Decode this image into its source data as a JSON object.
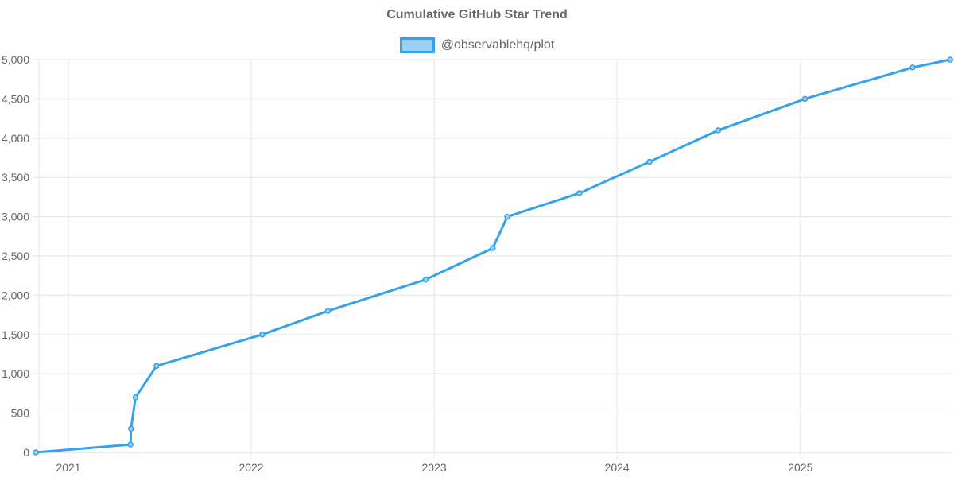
{
  "chart_data": {
    "type": "line",
    "title": "Cumulative GitHub Star Trend",
    "xlabel": "",
    "ylabel": "",
    "legend": {
      "position": "top",
      "entries": [
        "@observablehq/plot"
      ]
    },
    "grid": true,
    "ylim": [
      0,
      5000
    ],
    "y_ticks": [
      "0",
      "500",
      "1,000",
      "1,500",
      "2,000",
      "2,500",
      "3,000",
      "3,500",
      "4,000",
      "4,500",
      "5,000"
    ],
    "x_ticks": [
      "2021",
      "2022",
      "2023",
      "2024",
      "2025"
    ],
    "series": [
      {
        "name": "@observablehq/plot",
        "color": "#36a2eb",
        "fill": "#9ad0f5",
        "points": [
          {
            "date": "2020-10-28",
            "value": 0
          },
          {
            "date": "2021-05-05",
            "value": 100
          },
          {
            "date": "2021-05-06",
            "value": 300
          },
          {
            "date": "2021-05-15",
            "value": 700
          },
          {
            "date": "2021-06-26",
            "value": 1100
          },
          {
            "date": "2022-01-23",
            "value": 1500
          },
          {
            "date": "2022-06-03",
            "value": 1800
          },
          {
            "date": "2022-12-15",
            "value": 2200
          },
          {
            "date": "2023-04-28",
            "value": 2600
          },
          {
            "date": "2023-05-27",
            "value": 3000
          },
          {
            "date": "2023-10-18",
            "value": 3300
          },
          {
            "date": "2024-03-06",
            "value": 3700
          },
          {
            "date": "2024-07-21",
            "value": 4100
          },
          {
            "date": "2025-01-10",
            "value": 4500
          },
          {
            "date": "2025-08-13",
            "value": 4900
          },
          {
            "date": "2025-10-27",
            "value": 5000
          }
        ]
      }
    ]
  }
}
